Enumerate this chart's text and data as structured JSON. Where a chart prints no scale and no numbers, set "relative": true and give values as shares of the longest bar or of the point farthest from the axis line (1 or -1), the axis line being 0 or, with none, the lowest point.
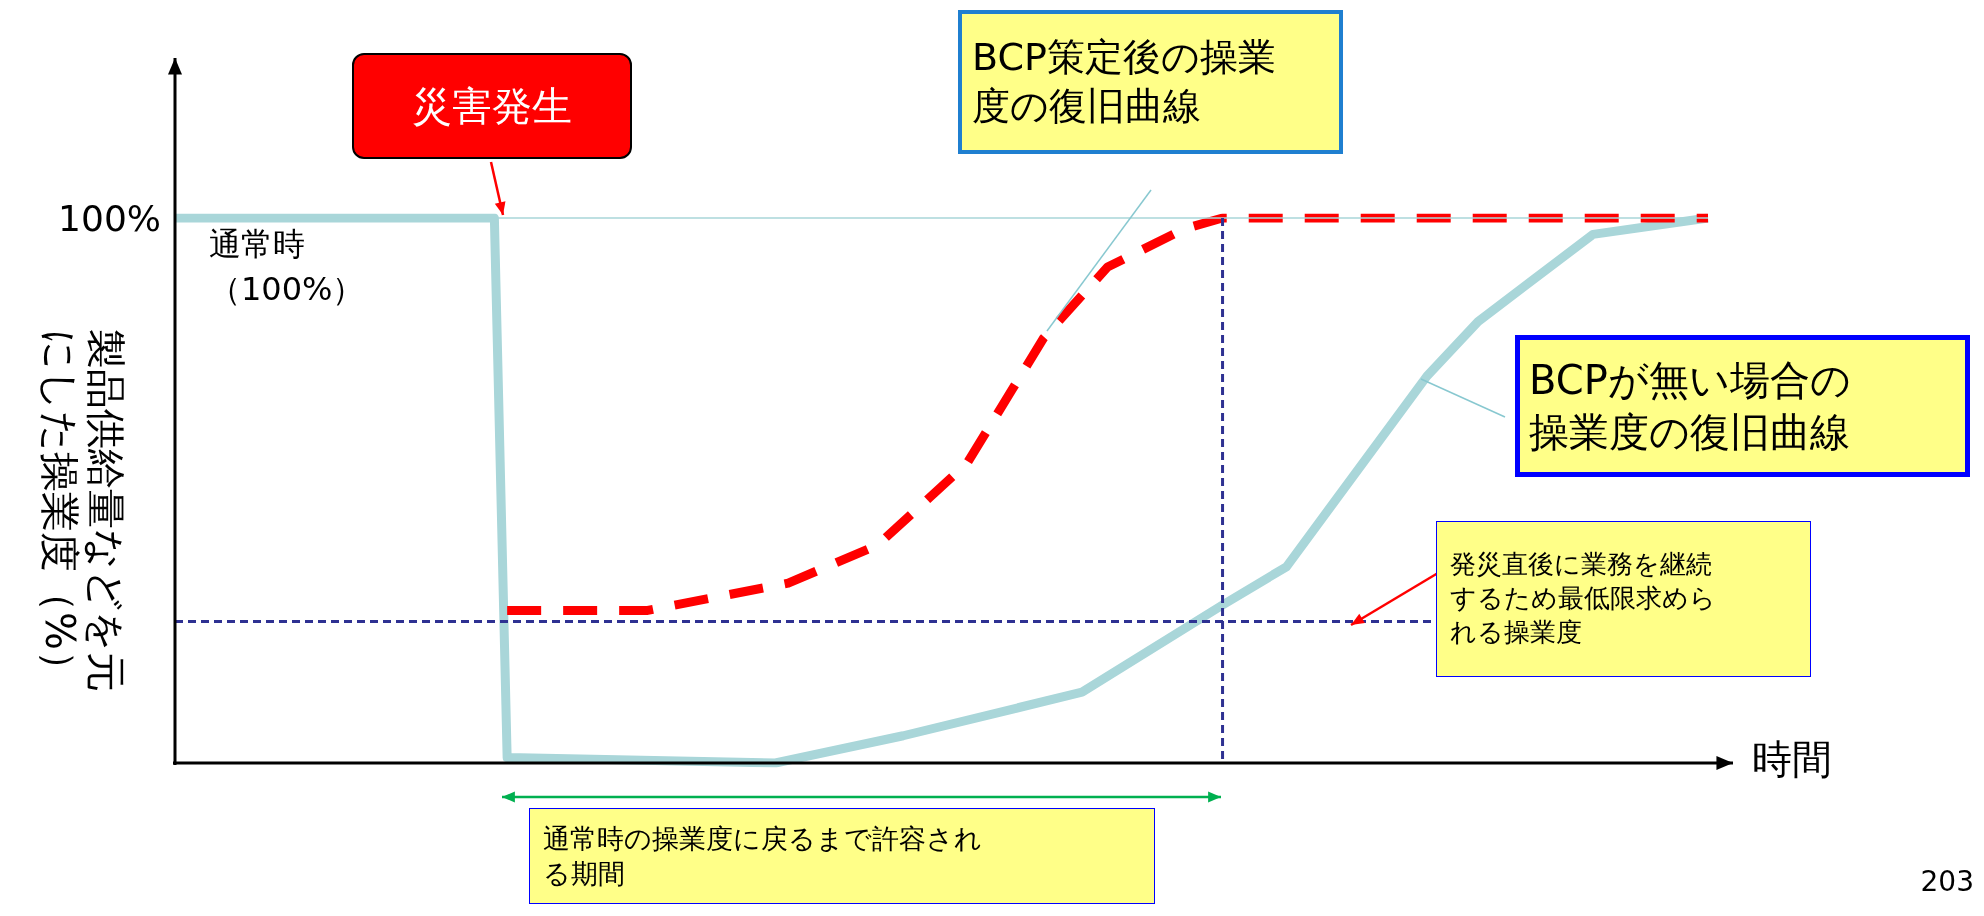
{
  "chart_data": {
    "type": "line",
    "relative": true,
    "xlabel": "時間",
    "ylabel": "製品供給量などを元にした操業度（%）",
    "categories": [
      null,
      null,
      null,
      null,
      null,
      null,
      null,
      null,
      null,
      null,
      null,
      null,
      null,
      null,
      null,
      null,
      null,
      null,
      null,
      null,
      null,
      null,
      null,
      null,
      null,
      null,
      null,
      null,
      null,
      null,
      null,
      null,
      null,
      null,
      null,
      null,
      null,
      null,
      null,
      null,
      null,
      null,
      null,
      null,
      null,
      null,
      null,
      null,
      null,
      null,
      null,
      null,
      null,
      null,
      null,
      null,
      null,
      null,
      null,
      null,
      null,
      null,
      null,
      null,
      null,
      null,
      null,
      null,
      null,
      null,
      null,
      null,
      null,
      null,
      null,
      null,
      null,
      null,
      null,
      null,
      null,
      null,
      null,
      null,
      null,
      null,
      null,
      null,
      null,
      null,
      null,
      null,
      null,
      null,
      null,
      null,
      null,
      null,
      null,
      null,
      null,
      null,
      null,
      null,
      null,
      null,
      null,
      null,
      null,
      null,
      null,
      null,
      null,
      null,
      null,
      null,
      null,
      null,
      null,
      null,
      null
    ],
    "series": [
      {
        "color": "#a9d6d9",
        "line_style": "solid",
        "values": [
          1,
          null,
          null,
          null,
          null,
          null,
          null,
          null,
          null,
          null,
          null,
          null,
          null,
          null,
          null,
          null,
          null,
          null,
          null,
          null,
          null,
          null,
          null,
          null,
          null,
          1,
          0.01,
          null,
          null,
          null,
          null,
          null,
          null,
          null,
          null,
          null,
          null,
          null,
          null,
          null,
          null,
          null,
          null,
          null,
          null,
          null,
          null,
          0,
          null,
          null,
          null,
          null,
          null,
          null,
          null,
          null,
          null,
          0.05,
          null,
          null,
          null,
          null,
          null,
          null,
          null,
          null,
          null,
          null,
          null,
          null,
          null,
          0.13,
          null,
          null,
          null,
          null,
          null,
          null,
          null,
          null,
          null,
          null,
          0.29,
          null,
          null,
          null,
          null,
          0.36,
          null,
          null,
          null,
          null,
          null,
          null,
          null,
          null,
          null,
          null,
          0.71,
          null,
          null,
          null,
          0.81,
          null,
          null,
          null,
          null,
          null,
          null,
          null,
          null,
          0.97,
          null,
          null,
          null,
          null,
          null,
          null,
          null,
          null,
          1
        ]
      },
      {
        "color": "#ff0000",
        "line_style": "dashed",
        "values": [
          null,
          null,
          null,
          null,
          null,
          null,
          null,
          null,
          null,
          null,
          null,
          null,
          null,
          null,
          null,
          null,
          null,
          null,
          null,
          null,
          null,
          null,
          null,
          null,
          null,
          null,
          0.28,
          null,
          null,
          null,
          null,
          null,
          null,
          null,
          null,
          null,
          null,
          0.28,
          null,
          null,
          null,
          null,
          null,
          null,
          null,
          null,
          null,
          null,
          0.33,
          null,
          null,
          null,
          null,
          null,
          null,
          0.4,
          null,
          null,
          null,
          null,
          null,
          null,
          0.55,
          null,
          null,
          null,
          null,
          null,
          0.78,
          null,
          null,
          null,
          null,
          0.91,
          null,
          null,
          null,
          null,
          null,
          0.98,
          null,
          null,
          1,
          null,
          null,
          null,
          null,
          null,
          null,
          null,
          null,
          null,
          null,
          null,
          null,
          null,
          null,
          null,
          null,
          null,
          null,
          null,
          null,
          null,
          null,
          null,
          null,
          null,
          null,
          null,
          null,
          null,
          null,
          null,
          null,
          null,
          null,
          null,
          null,
          null,
          1
        ]
      }
    ],
    "ref_lines": [
      {
        "axis": "y",
        "value": 1,
        "label": "100%",
        "color": "#a9d6d9",
        "line_style": "solid"
      },
      {
        "axis": "y",
        "value": 0.26,
        "color": "#2e3192",
        "line_style": "dashed"
      }
    ],
    "annotations": [
      "災害発生",
      "BCP策定後の操業度の復旧曲線",
      "BCPが無い場合の操業度の復旧曲線",
      "発災直後に業務を継続するため最低限求められる操業度",
      "通常時（100%）",
      "通常時の操業度に戻るまで許容される期間",
      "203"
    ],
    "grid": false,
    "marker": "none"
  }
}
